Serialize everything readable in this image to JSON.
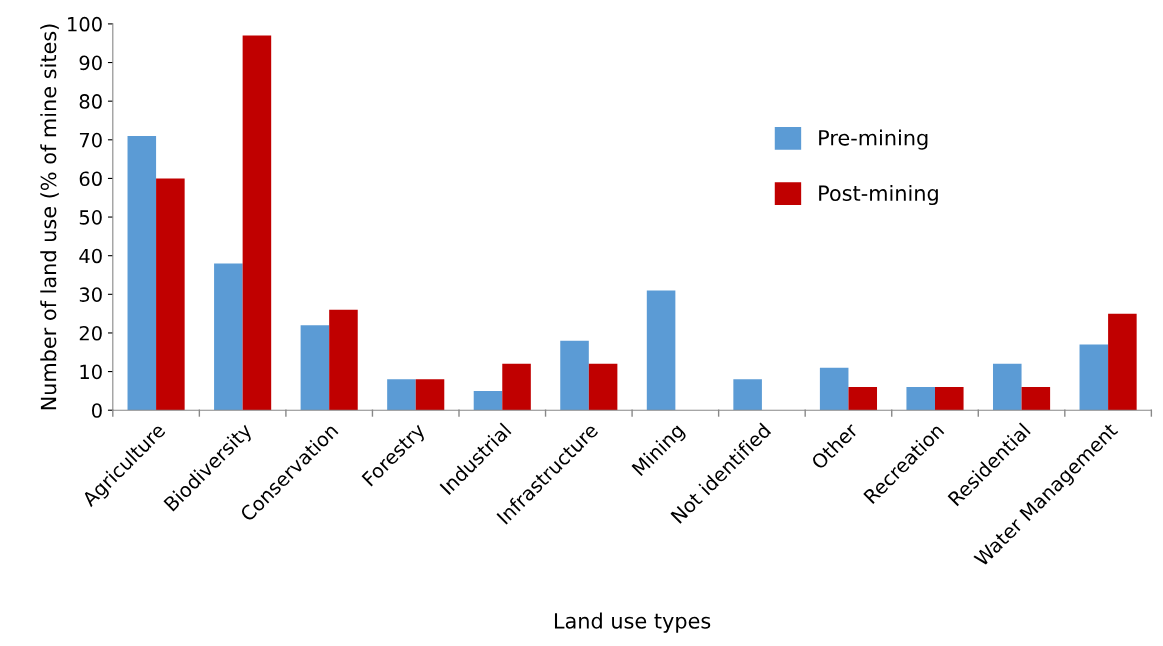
{
  "chart_data": {
    "type": "bar",
    "xlabel": "Land use types",
    "ylabel": "Number of land use (% of mine sites)",
    "categories": [
      "Agriculture",
      "Biodiversity",
      "Conservation",
      "Forestry",
      "Industrial",
      "Infrastructure",
      "Mining",
      "Not identified",
      "Other",
      "Recreation",
      "Residential",
      "Water Management"
    ],
    "series": [
      {
        "name": "Pre-mining",
        "color": "#5b9bd5",
        "values": [
          71,
          38,
          22,
          8,
          5,
          18,
          31,
          8,
          11,
          6,
          12,
          17
        ]
      },
      {
        "name": "Post-mining",
        "color": "#c00000",
        "values": [
          60,
          97,
          26,
          8,
          12,
          12,
          0,
          0,
          6,
          6,
          6,
          25
        ]
      }
    ],
    "ylim": [
      0,
      100
    ],
    "yticks": [
      0,
      10,
      20,
      30,
      40,
      50,
      60,
      70,
      80,
      90,
      100
    ],
    "grid": false,
    "legend": "top right"
  }
}
